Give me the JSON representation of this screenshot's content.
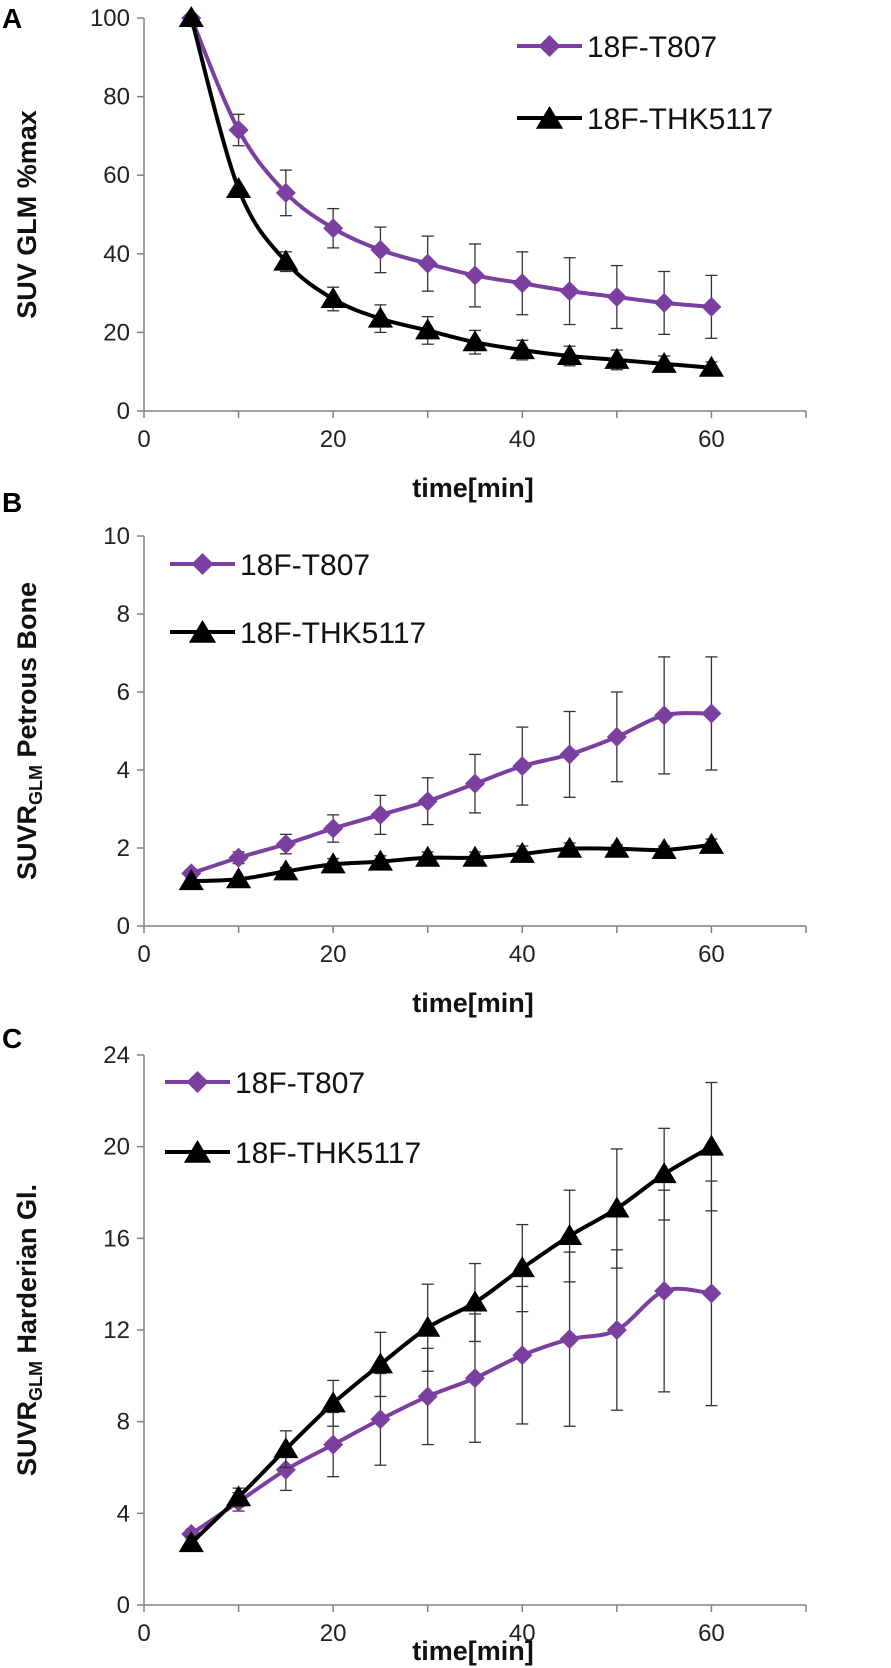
{
  "colors": {
    "t807": "#7b3fa0",
    "thk": "#000000",
    "axis": "#808080",
    "errorbar": "#333333"
  },
  "chart_data": [
    {
      "panel": "A",
      "type": "line",
      "xlabel": "time[min]",
      "ylabel": "SUV GLM %max",
      "xlim": [
        0,
        70
      ],
      "ylim": [
        0,
        100
      ],
      "xticks": [
        "0",
        "20",
        "40",
        "60"
      ],
      "yticks": [
        "0",
        "20",
        "40",
        "60",
        "80",
        "100"
      ],
      "legend_position": "top-right",
      "x": [
        5,
        10,
        15,
        20,
        25,
        30,
        35,
        40,
        45,
        50,
        55,
        60
      ],
      "series": [
        {
          "name": "18F-T807",
          "marker": "diamond",
          "values": [
            100,
            71.5,
            55.5,
            46.5,
            41,
            37.5,
            34.5,
            32.5,
            30.5,
            29,
            27.5,
            26.5
          ],
          "errors": [
            0,
            4,
            5.8,
            5,
            5.8,
            7,
            8,
            8,
            8.5,
            8,
            8,
            8
          ]
        },
        {
          "name": "18F-THK5117",
          "marker": "triangle",
          "values": [
            100,
            56.5,
            38,
            28.5,
            23.5,
            20.5,
            17.5,
            15.5,
            14,
            13,
            12,
            11
          ],
          "errors": [
            0,
            0,
            2.5,
            3,
            3.5,
            3.5,
            3,
            2.5,
            2.5,
            2.5,
            2,
            1.5
          ]
        }
      ]
    },
    {
      "panel": "B",
      "type": "line",
      "xlabel": "time[min]",
      "ylabel_main": "SUVR",
      "ylabel_sub": "GLM",
      "ylabel_rest": " Petrous Bone",
      "xlim": [
        0,
        70
      ],
      "ylim": [
        0,
        10
      ],
      "xticks": [
        "0",
        "20",
        "40",
        "60"
      ],
      "yticks": [
        "0",
        "2",
        "4",
        "6",
        "8",
        "10"
      ],
      "legend_position": "top-left",
      "x": [
        5,
        10,
        15,
        20,
        25,
        30,
        35,
        40,
        45,
        50,
        55,
        60
      ],
      "series": [
        {
          "name": "18F-T807",
          "marker": "diamond",
          "values": [
            1.35,
            1.75,
            2.1,
            2.5,
            2.85,
            3.2,
            3.65,
            4.1,
            4.4,
            4.85,
            5.4,
            5.45
          ],
          "errors": [
            0.1,
            0.15,
            0.25,
            0.35,
            0.5,
            0.6,
            0.75,
            1.0,
            1.1,
            1.15,
            1.5,
            1.45
          ]
        },
        {
          "name": "18F-THK5117",
          "marker": "triangle",
          "values": [
            1.15,
            1.2,
            1.4,
            1.58,
            1.65,
            1.75,
            1.75,
            1.85,
            1.98,
            1.98,
            1.95,
            2.08
          ],
          "errors": [
            0.05,
            0.05,
            0.1,
            0.15,
            0.15,
            0.15,
            0.15,
            0.2,
            0.15,
            0.1,
            0.1,
            0.15
          ]
        }
      ]
    },
    {
      "panel": "C",
      "type": "line",
      "xlabel": "time[min]",
      "ylabel_main": "SUVR",
      "ylabel_sub": "GLM",
      "ylabel_rest": " Harderian Gl.",
      "xlim": [
        0,
        70
      ],
      "ylim": [
        0,
        24
      ],
      "xticks": [
        "0",
        "20",
        "40",
        "60"
      ],
      "yticks": [
        "0",
        "4",
        "8",
        "12",
        "16",
        "20",
        "24"
      ],
      "legend_position": "top-left",
      "x": [
        5,
        10,
        15,
        20,
        25,
        30,
        35,
        40,
        45,
        50,
        55,
        60
      ],
      "series": [
        {
          "name": "18F-T807",
          "marker": "diamond",
          "values": [
            3.1,
            4.5,
            5.9,
            7.0,
            8.1,
            9.1,
            9.9,
            10.9,
            11.6,
            12.0,
            13.7,
            13.6
          ],
          "errors": [
            0.2,
            0.4,
            0.9,
            1.4,
            2.0,
            2.1,
            2.8,
            3.0,
            3.8,
            3.5,
            4.4,
            4.9
          ]
        },
        {
          "name": "18F-THK5117",
          "marker": "triangle",
          "values": [
            2.7,
            4.7,
            6.8,
            8.8,
            10.5,
            12.1,
            13.2,
            14.7,
            16.1,
            17.3,
            18.8,
            20.0
          ],
          "errors": [
            0.3,
            0.4,
            0.8,
            1.0,
            1.4,
            1.9,
            1.7,
            1.9,
            2.0,
            2.6,
            2.0,
            2.8
          ]
        }
      ]
    }
  ]
}
